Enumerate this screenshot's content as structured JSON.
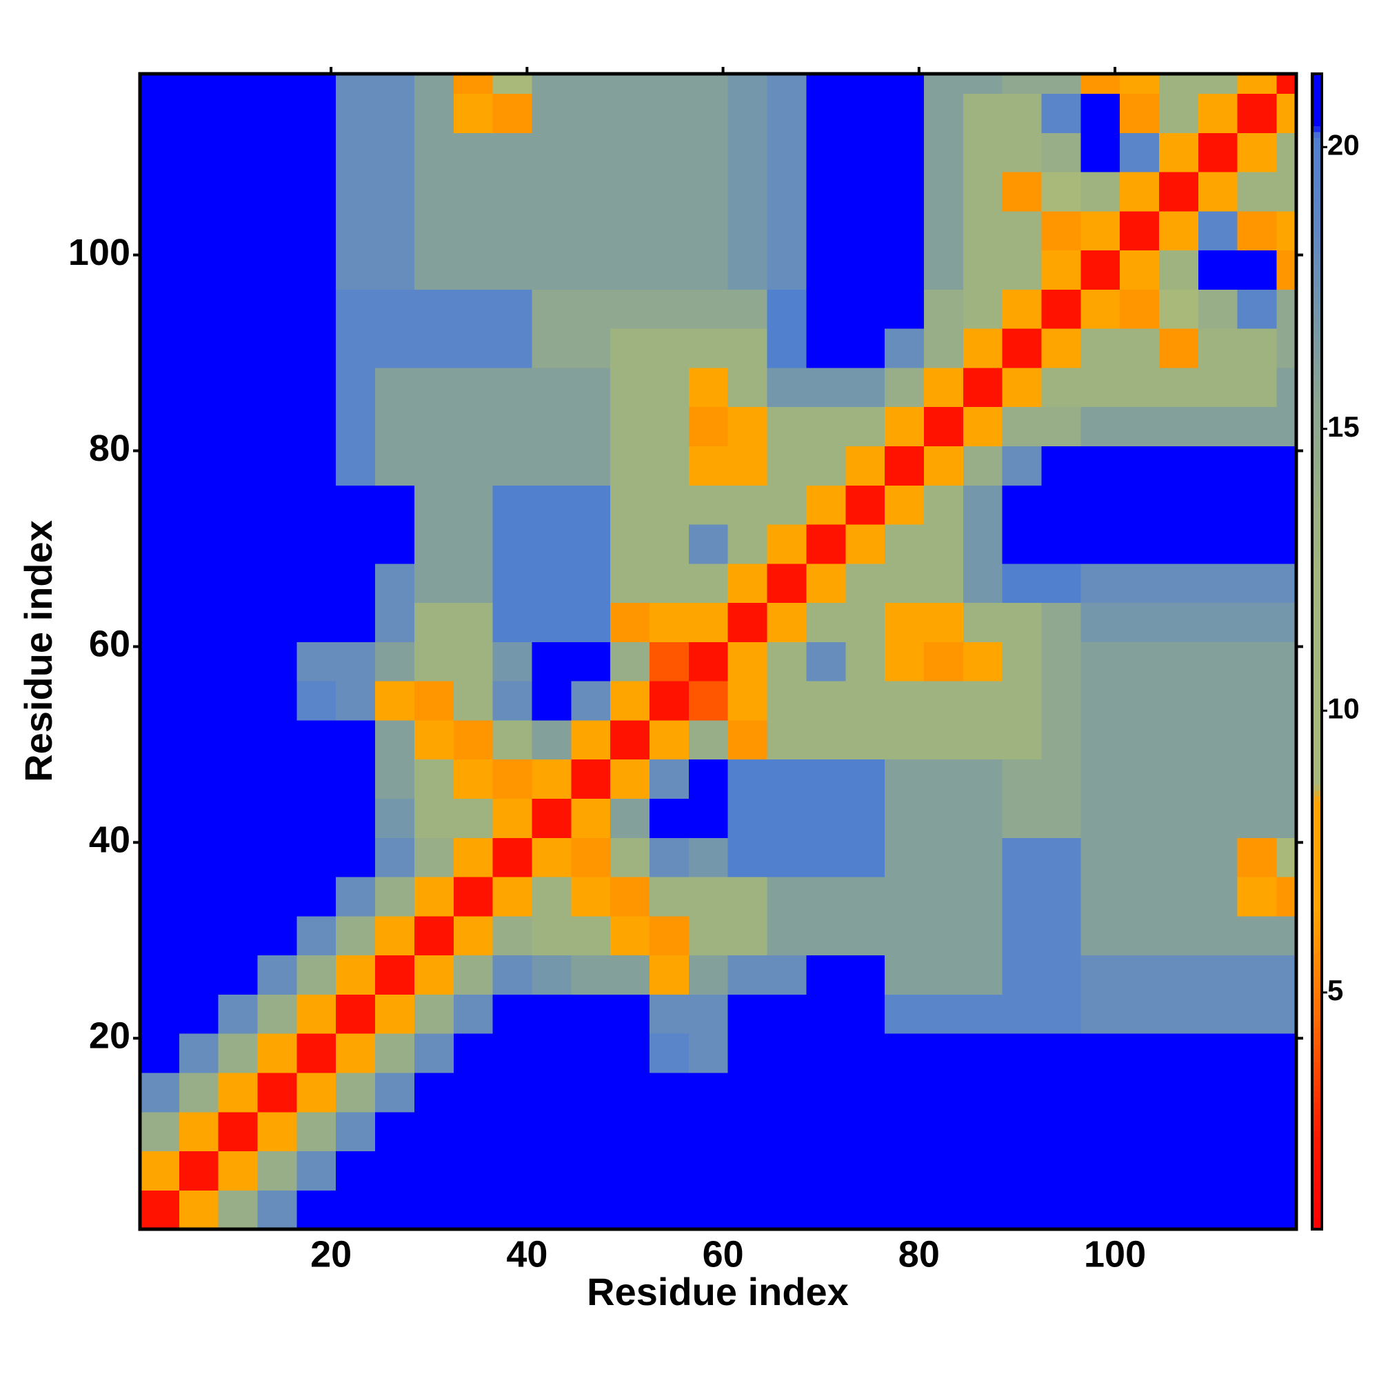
{
  "chart_data": {
    "type": "heatmap",
    "xlabel": "Residue index",
    "ylabel": "Residue index",
    "xlim": [
      0.5,
      118.5
    ],
    "ylim": [
      0.5,
      118.5
    ],
    "xticks": [
      20,
      40,
      60,
      80,
      100
    ],
    "yticks": [
      20,
      40,
      60,
      80,
      100
    ],
    "x_bins": [
      0.5,
      4.5,
      8.5,
      12.5,
      16.5,
      20.5,
      24.5,
      28.5,
      32.5,
      36.5,
      40.5,
      44.5,
      48.5,
      52.5,
      56.5,
      60.5,
      64.5,
      68.5,
      72.5,
      76.5,
      80.5,
      84.5,
      88.5,
      92.5,
      96.5,
      100.5,
      104.5,
      108.5,
      112.5,
      116.5,
      118.5
    ],
    "y_bins": [
      0.5,
      4.5,
      8.5,
      12.5,
      16.5,
      20.5,
      24.5,
      28.5,
      32.5,
      36.5,
      40.5,
      44.5,
      48.5,
      52.5,
      56.5,
      60.5,
      64.5,
      68.5,
      72.5,
      76.5,
      80.5,
      84.5,
      88.5,
      92.5,
      96.5,
      100.5,
      104.5,
      108.5,
      112.5,
      116.5,
      118.5
    ],
    "z": [
      [
        2,
        8,
        14,
        18,
        21,
        21,
        21,
        21,
        21,
        21,
        21,
        21,
        21,
        21,
        21,
        21,
        21,
        21,
        21,
        21,
        21,
        21,
        21,
        21,
        21,
        21,
        21,
        21,
        21,
        21
      ],
      [
        8,
        2,
        8,
        14,
        18,
        21,
        21,
        21,
        21,
        21,
        21,
        21,
        21,
        21,
        21,
        21,
        21,
        21,
        21,
        21,
        21,
        21,
        21,
        21,
        21,
        21,
        21,
        21,
        21,
        21
      ],
      [
        14,
        8,
        2,
        8,
        14,
        18,
        21,
        21,
        21,
        21,
        21,
        21,
        21,
        21,
        21,
        21,
        21,
        21,
        21,
        21,
        21,
        21,
        21,
        21,
        21,
        21,
        21,
        21,
        21,
        21
      ],
      [
        18,
        14,
        8,
        2,
        8,
        14,
        18,
        21,
        21,
        21,
        21,
        21,
        21,
        21,
        21,
        21,
        21,
        21,
        21,
        21,
        21,
        21,
        21,
        21,
        21,
        21,
        21,
        21,
        21,
        21
      ],
      [
        21,
        18,
        14,
        8,
        2,
        8,
        14,
        18,
        21,
        21,
        21,
        21,
        21,
        19,
        18,
        21,
        21,
        21,
        21,
        21,
        21,
        21,
        21,
        21,
        21,
        21,
        21,
        21,
        21,
        21
      ],
      [
        21,
        21,
        18,
        14,
        8,
        2,
        8,
        14,
        18,
        21,
        21,
        21,
        21,
        18,
        18,
        21,
        21,
        21,
        21,
        19,
        19,
        19,
        19,
        19,
        18,
        18,
        18,
        18,
        18,
        18
      ],
      [
        21,
        21,
        21,
        18,
        14,
        8,
        2,
        8,
        14,
        18,
        17,
        16,
        16,
        8,
        16,
        18,
        18,
        21,
        21,
        16,
        16,
        16,
        19,
        19,
        18,
        18,
        18,
        18,
        18,
        18
      ],
      [
        21,
        21,
        21,
        21,
        18,
        14,
        8,
        2,
        8,
        14,
        13,
        13,
        8,
        6,
        13,
        13,
        16,
        16,
        16,
        16,
        16,
        16,
        19,
        19,
        16,
        16,
        16,
        16,
        16,
        16
      ],
      [
        21,
        21,
        21,
        21,
        21,
        18,
        14,
        8,
        2,
        8,
        13,
        8,
        6,
        13,
        13,
        13,
        16,
        16,
        16,
        16,
        16,
        16,
        19,
        19,
        16,
        16,
        16,
        16,
        8,
        6
      ],
      [
        21,
        21,
        21,
        21,
        21,
        21,
        18,
        14,
        8,
        2,
        8,
        6,
        13,
        18,
        17,
        20,
        20,
        20,
        20,
        16,
        16,
        16,
        19,
        19,
        16,
        16,
        16,
        16,
        6,
        9
      ],
      [
        21,
        21,
        21,
        21,
        21,
        21,
        17,
        13,
        13,
        8,
        2,
        8,
        16,
        21,
        21,
        20,
        20,
        20,
        20,
        16,
        16,
        16,
        15,
        15,
        16,
        16,
        16,
        16,
        16,
        16
      ],
      [
        21,
        21,
        21,
        21,
        21,
        21,
        16,
        13,
        8,
        6,
        8,
        2,
        8,
        18,
        21,
        20,
        20,
        20,
        20,
        16,
        16,
        16,
        15,
        15,
        16,
        16,
        16,
        16,
        16,
        16
      ],
      [
        21,
        21,
        21,
        21,
        21,
        21,
        16,
        8,
        6,
        13,
        16,
        8,
        2,
        8,
        14,
        6,
        13,
        13,
        13,
        13,
        13,
        13,
        13,
        15,
        16,
        16,
        16,
        16,
        16,
        16
      ],
      [
        21,
        21,
        21,
        21,
        19,
        18,
        8,
        6,
        13,
        18,
        21,
        18,
        8,
        2,
        4,
        7,
        13,
        13,
        13,
        13,
        13,
        13,
        13,
        15,
        16,
        16,
        16,
        16,
        16,
        16
      ],
      [
        21,
        21,
        21,
        21,
        18,
        18,
        16,
        13,
        13,
        17,
        21,
        21,
        14,
        4,
        2,
        8,
        13,
        18,
        13,
        7,
        6,
        7,
        13,
        15,
        16,
        16,
        16,
        16,
        16,
        16
      ],
      [
        21,
        21,
        21,
        21,
        21,
        21,
        18,
        13,
        13,
        20,
        20,
        20,
        6,
        7,
        8,
        2,
        8,
        13,
        13,
        7,
        8,
        13,
        13,
        15,
        17,
        17,
        17,
        17,
        17,
        17
      ],
      [
        21,
        21,
        21,
        21,
        21,
        21,
        18,
        16,
        16,
        20,
        20,
        20,
        13,
        13,
        13,
        8,
        2,
        8,
        13,
        13,
        13,
        17,
        20,
        20,
        18,
        18,
        18,
        18,
        18,
        18
      ],
      [
        21,
        21,
        21,
        21,
        21,
        21,
        21,
        16,
        16,
        20,
        20,
        20,
        13,
        13,
        18,
        13,
        8,
        2,
        8,
        13,
        13,
        17,
        21,
        21,
        21,
        21,
        21,
        21,
        21,
        21
      ],
      [
        21,
        21,
        21,
        21,
        21,
        21,
        21,
        16,
        16,
        20,
        20,
        20,
        13,
        13,
        13,
        13,
        13,
        8,
        2,
        8,
        13,
        17,
        21,
        21,
        21,
        21,
        21,
        21,
        21,
        21
      ],
      [
        21,
        21,
        21,
        21,
        21,
        19,
        16,
        16,
        16,
        16,
        16,
        16,
        13,
        13,
        7,
        7,
        13,
        13,
        8,
        2,
        8,
        14,
        18,
        21,
        21,
        21,
        21,
        21,
        21,
        21
      ],
      [
        21,
        21,
        21,
        21,
        21,
        19,
        16,
        16,
        16,
        16,
        16,
        16,
        13,
        13,
        6,
        8,
        13,
        13,
        13,
        8,
        2,
        8,
        14,
        14,
        16,
        16,
        16,
        16,
        16,
        16
      ],
      [
        21,
        21,
        21,
        21,
        21,
        19,
        16,
        16,
        16,
        16,
        16,
        16,
        13,
        13,
        7,
        13,
        17,
        17,
        17,
        14,
        8,
        2,
        8,
        13,
        13,
        13,
        13,
        13,
        13,
        16
      ],
      [
        21,
        21,
        21,
        21,
        21,
        19,
        19,
        19,
        19,
        19,
        15,
        15,
        13,
        13,
        13,
        13,
        20,
        21,
        21,
        18,
        14,
        8,
        2,
        8,
        13,
        13,
        6,
        13,
        13,
        15
      ],
      [
        21,
        21,
        21,
        21,
        21,
        19,
        19,
        19,
        19,
        19,
        15,
        15,
        15,
        15,
        15,
        15,
        20,
        21,
        21,
        21,
        14,
        13,
        8,
        2,
        8,
        6,
        9,
        14,
        19,
        15
      ],
      [
        21,
        21,
        21,
        21,
        21,
        18,
        18,
        16,
        16,
        16,
        16,
        16,
        16,
        16,
        16,
        17,
        18,
        21,
        21,
        21,
        16,
        13,
        13,
        8,
        2,
        8,
        13,
        21,
        21,
        6
      ],
      [
        21,
        21,
        21,
        21,
        21,
        18,
        18,
        16,
        16,
        16,
        16,
        16,
        16,
        16,
        16,
        17,
        18,
        21,
        21,
        21,
        16,
        13,
        13,
        6,
        8,
        2,
        8,
        19,
        6,
        8
      ],
      [
        21,
        21,
        21,
        21,
        21,
        18,
        18,
        16,
        16,
        16,
        16,
        16,
        16,
        16,
        16,
        17,
        18,
        21,
        21,
        21,
        16,
        13,
        6,
        9,
        13,
        8,
        2,
        8,
        13,
        13
      ],
      [
        21,
        21,
        21,
        21,
        21,
        18,
        18,
        16,
        16,
        16,
        16,
        16,
        16,
        16,
        16,
        17,
        18,
        21,
        21,
        21,
        16,
        13,
        13,
        14,
        21,
        19,
        8,
        2,
        8,
        13
      ],
      [
        21,
        21,
        21,
        21,
        21,
        18,
        18,
        16,
        8,
        6,
        16,
        16,
        16,
        16,
        16,
        17,
        18,
        21,
        21,
        21,
        16,
        13,
        13,
        19,
        21,
        6,
        13,
        8,
        2,
        8
      ],
      [
        21,
        21,
        21,
        21,
        21,
        18,
        18,
        16,
        6,
        9,
        16,
        16,
        16,
        16,
        16,
        17,
        18,
        21,
        21,
        21,
        16,
        16,
        15,
        15,
        6,
        8,
        13,
        13,
        8,
        2
      ]
    ],
    "colorbar": {
      "lim": [
        0.8,
        21.3
      ],
      "ticks": [
        5,
        10,
        15,
        20
      ],
      "colorscale": [
        {
          "value": 0.8,
          "color": "#ff0000"
        },
        {
          "value": 2.5,
          "color": "#ff1a00"
        },
        {
          "value": 4.5,
          "color": "#ff6a00"
        },
        {
          "value": 6.5,
          "color": "#ffa500"
        },
        {
          "value": 8.4,
          "color": "#ffa500"
        },
        {
          "value": 8.7,
          "color": "#a9b97a"
        },
        {
          "value": 12.5,
          "color": "#a3b67e"
        },
        {
          "value": 15.5,
          "color": "#8ba592"
        },
        {
          "value": 18.5,
          "color": "#5f88c4"
        },
        {
          "value": 20.2,
          "color": "#4f7fd0"
        },
        {
          "value": 20.4,
          "color": "#0000ff"
        },
        {
          "value": 21.3,
          "color": "#0000ff"
        }
      ]
    }
  }
}
